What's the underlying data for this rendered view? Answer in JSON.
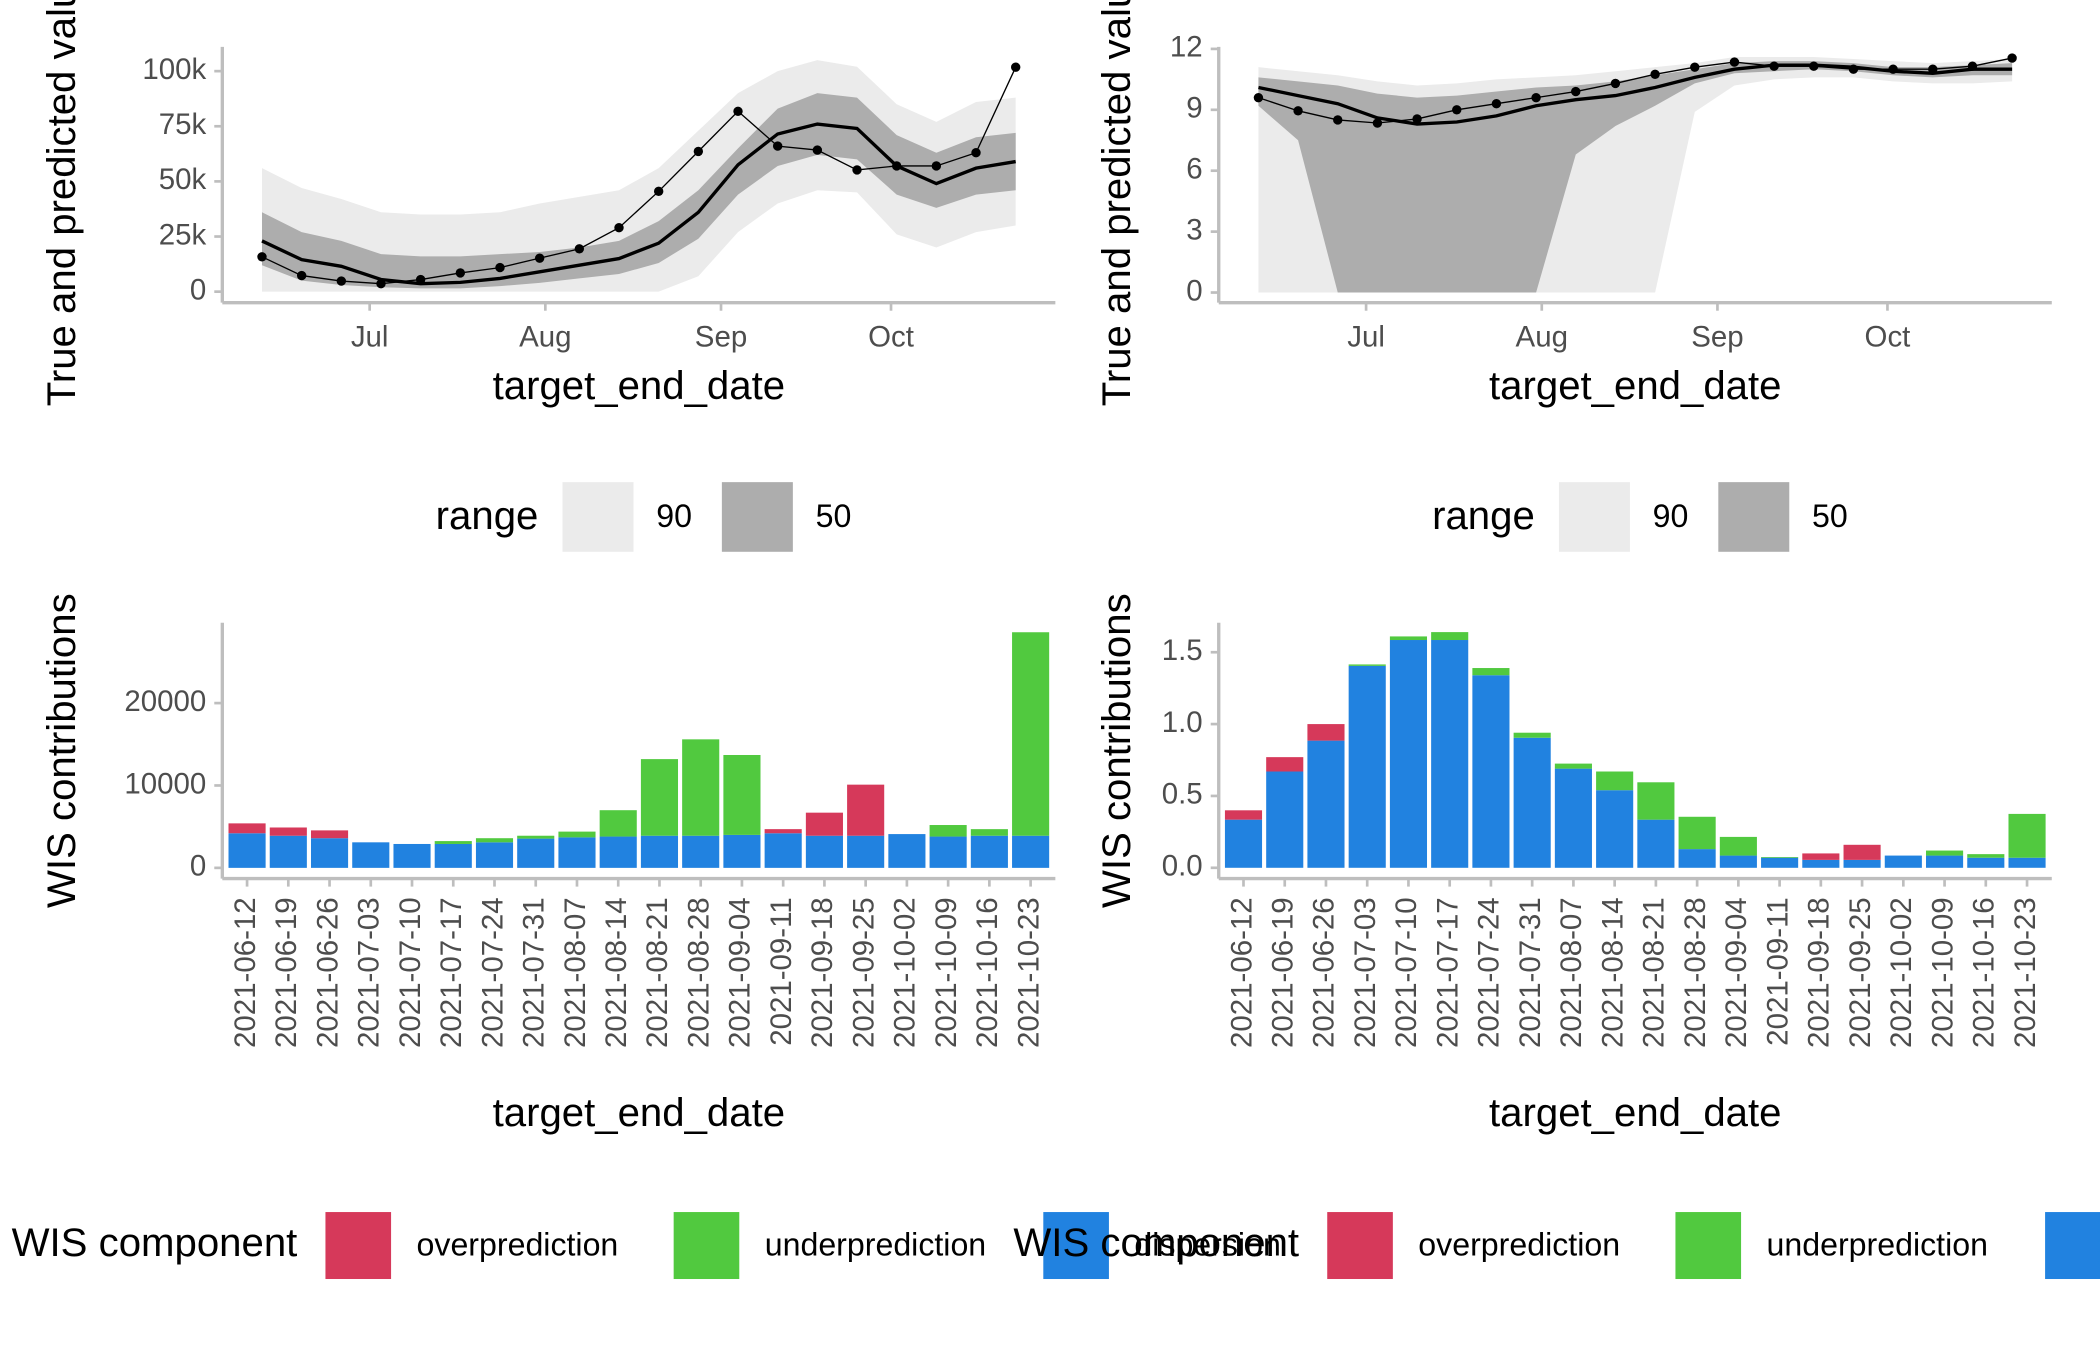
{
  "chart_data": [
    {
      "type": "line",
      "y_title": "True and predicted values",
      "x_title": "target_end_date",
      "legend_title": "range",
      "x": [
        "2021-06-12",
        "2021-06-19",
        "2021-06-26",
        "2021-07-03",
        "2021-07-10",
        "2021-07-17",
        "2021-07-24",
        "2021-07-31",
        "2021-08-07",
        "2021-08-14",
        "2021-08-21",
        "2021-08-28",
        "2021-09-04",
        "2021-09-11",
        "2021-09-18",
        "2021-09-25",
        "2021-10-02",
        "2021-10-09",
        "2021-10-16",
        "2021-10-23"
      ],
      "xlim": [
        "2021-06-05",
        "2021-10-30"
      ],
      "xticks": [
        {
          "value": "2021-07-01",
          "label": "Jul"
        },
        {
          "value": "2021-08-01",
          "label": "Aug"
        },
        {
          "value": "2021-09-01",
          "label": "Sep"
        },
        {
          "value": "2021-10-01",
          "label": "Oct"
        }
      ],
      "ylim": [
        -5000,
        111000
      ],
      "yticks": [
        0,
        {
          "value": 25000,
          "label": "25k"
        },
        {
          "value": 50000,
          "label": "50k"
        },
        {
          "value": 75000,
          "label": "75k"
        },
        {
          "value": 100000,
          "label": "100k"
        }
      ],
      "observed": [
        15800,
        7300,
        4800,
        3600,
        5500,
        8500,
        10900,
        15200,
        19400,
        29000,
        45500,
        63600,
        81800,
        66000,
        64200,
        55200,
        57000,
        57000,
        63000,
        101800
      ],
      "median": [
        23000,
        14500,
        11500,
        5500,
        3600,
        4200,
        6000,
        9000,
        12000,
        15000,
        22000,
        36000,
        57500,
        71500,
        76000,
        74000,
        57000,
        49000,
        56000,
        59000
      ],
      "bands": [
        {
          "name": "90",
          "color": "#ebebeb",
          "lower": [
            0,
            0,
            0,
            0,
            0,
            0,
            0,
            0,
            0,
            0,
            0,
            7000,
            27000,
            40000,
            46000,
            45000,
            26000,
            20000,
            27000,
            30000
          ],
          "upper": [
            56000,
            47000,
            42000,
            36000,
            35000,
            35000,
            36000,
            40000,
            43000,
            46000,
            56000,
            73000,
            90000,
            100000,
            105000,
            102000,
            85000,
            77000,
            86000,
            88000
          ]
        },
        {
          "name": "50",
          "color": "#adadad",
          "lower": [
            12000,
            5000,
            3000,
            2000,
            1500,
            1500,
            2500,
            4000,
            6000,
            8000,
            13000,
            24000,
            44000,
            57000,
            62000,
            60000,
            44000,
            38000,
            44000,
            46000
          ],
          "upper": [
            36000,
            27000,
            23000,
            17000,
            16000,
            16000,
            17000,
            18000,
            20000,
            23000,
            32000,
            46000,
            65000,
            83000,
            90000,
            88000,
            71000,
            63000,
            70000,
            72000
          ]
        }
      ]
    },
    {
      "type": "line",
      "y_title": "True and predicted values",
      "x_title": "target_end_date",
      "legend_title": "range",
      "x": [
        "2021-06-12",
        "2021-06-19",
        "2021-06-26",
        "2021-07-03",
        "2021-07-10",
        "2021-07-17",
        "2021-07-24",
        "2021-07-31",
        "2021-08-07",
        "2021-08-14",
        "2021-08-21",
        "2021-08-28",
        "2021-09-04",
        "2021-09-11",
        "2021-09-18",
        "2021-09-25",
        "2021-10-02",
        "2021-10-09",
        "2021-10-16",
        "2021-10-23"
      ],
      "xlim": [
        "2021-06-05",
        "2021-10-30"
      ],
      "xticks": [
        {
          "value": "2021-07-01",
          "label": "Jul"
        },
        {
          "value": "2021-08-01",
          "label": "Aug"
        },
        {
          "value": "2021-09-01",
          "label": "Sep"
        },
        {
          "value": "2021-10-01",
          "label": "Oct"
        }
      ],
      "ylim": [
        -0.5,
        12.1
      ],
      "yticks": [
        0,
        3,
        6,
        9,
        12
      ],
      "observed": [
        9.6,
        8.95,
        8.5,
        8.35,
        8.55,
        9.0,
        9.3,
        9.6,
        9.9,
        10.3,
        10.75,
        11.1,
        11.35,
        11.15,
        11.15,
        11.0,
        11.0,
        11.0,
        11.15,
        11.55
      ],
      "median": [
        10.1,
        9.7,
        9.3,
        8.6,
        8.3,
        8.4,
        8.7,
        9.2,
        9.5,
        9.7,
        10.1,
        10.6,
        11.0,
        11.2,
        11.2,
        11.1,
        10.9,
        10.8,
        11.0,
        11.0
      ],
      "bands": [
        {
          "name": "90",
          "color": "#ebebeb",
          "lower": [
            0,
            0,
            0,
            0,
            0,
            0,
            0,
            0,
            0,
            0,
            0,
            8.9,
            10.2,
            10.5,
            10.6,
            10.6,
            10.4,
            10.3,
            10.3,
            10.4
          ],
          "upper": [
            11.1,
            10.9,
            10.7,
            10.4,
            10.2,
            10.3,
            10.5,
            10.6,
            10.7,
            10.9,
            11.1,
            11.3,
            11.6,
            11.6,
            11.6,
            11.5,
            11.4,
            11.3,
            11.4,
            11.5
          ]
        },
        {
          "name": "50",
          "color": "#adadad",
          "lower": [
            9.2,
            7.5,
            0,
            0,
            0,
            0,
            0,
            0,
            6.8,
            8.2,
            9.2,
            10.3,
            10.8,
            10.9,
            11.0,
            10.9,
            10.7,
            10.6,
            10.7,
            10.7
          ],
          "upper": [
            10.6,
            10.4,
            10.2,
            9.8,
            9.6,
            9.7,
            9.9,
            10.1,
            10.2,
            10.4,
            10.7,
            11.0,
            11.3,
            11.4,
            11.4,
            11.3,
            11.1,
            11.1,
            11.2,
            11.3
          ]
        }
      ]
    },
    {
      "type": "bar",
      "y_title": "WIS contributions",
      "x_title": "target_end_date",
      "legend_title": "WIS component",
      "categories": [
        "2021-06-12",
        "2021-06-19",
        "2021-06-26",
        "2021-07-03",
        "2021-07-10",
        "2021-07-17",
        "2021-07-24",
        "2021-07-31",
        "2021-08-07",
        "2021-08-14",
        "2021-08-21",
        "2021-08-28",
        "2021-09-04",
        "2021-09-11",
        "2021-09-18",
        "2021-09-25",
        "2021-10-02",
        "2021-10-09",
        "2021-10-16",
        "2021-10-23"
      ],
      "ylim": [
        -1300,
        29750
      ],
      "yticks": [
        0,
        10000,
        20000
      ],
      "series": [
        {
          "name": "overprediction",
          "color": "#d6395a",
          "values": [
            1200,
            1000,
            950,
            0,
            0,
            0,
            0,
            0,
            0,
            0,
            0,
            0,
            0,
            500,
            2800,
            6200,
            0,
            0,
            0,
            0
          ]
        },
        {
          "name": "underprediction",
          "color": "#51c93f",
          "values": [
            0,
            0,
            0,
            0,
            0,
            350,
            500,
            350,
            700,
            3200,
            9300,
            11700,
            9700,
            0,
            0,
            0,
            0,
            1400,
            800,
            24700
          ]
        },
        {
          "name": "dispersion",
          "color": "#2182e0",
          "values": [
            4200,
            3900,
            3600,
            3100,
            2900,
            2900,
            3100,
            3550,
            3700,
            3800,
            3900,
            3900,
            4000,
            4200,
            3900,
            3900,
            4100,
            3800,
            3900,
            3900
          ]
        }
      ]
    },
    {
      "type": "bar",
      "y_title": "WIS contributions",
      "x_title": "target_end_date",
      "legend_title": "WIS component",
      "categories": [
        "2021-06-12",
        "2021-06-19",
        "2021-06-26",
        "2021-07-03",
        "2021-07-10",
        "2021-07-17",
        "2021-07-24",
        "2021-07-31",
        "2021-08-07",
        "2021-08-14",
        "2021-08-21",
        "2021-08-28",
        "2021-09-04",
        "2021-09-11",
        "2021-09-18",
        "2021-09-25",
        "2021-10-02",
        "2021-10-09",
        "2021-10-16",
        "2021-10-23"
      ],
      "ylim": [
        -0.075,
        1.705
      ],
      "yticks": [
        {
          "value": 0,
          "label": "0.0"
        },
        0.5,
        {
          "value": 1,
          "label": "1.0"
        },
        1.5
      ],
      "series": [
        {
          "name": "overprediction",
          "color": "#d6395a",
          "values": [
            0.065,
            0.1,
            0.115,
            0,
            0,
            0,
            0,
            0,
            0,
            0,
            0,
            0,
            0,
            0,
            0.045,
            0.105,
            0,
            0,
            0,
            0
          ]
        },
        {
          "name": "underprediction",
          "color": "#51c93f",
          "values": [
            0,
            0,
            0,
            0.01,
            0.025,
            0.055,
            0.05,
            0.035,
            0.035,
            0.13,
            0.26,
            0.225,
            0.13,
            0.005,
            0,
            0,
            0,
            0.035,
            0.025,
            0.305
          ]
        },
        {
          "name": "dispersion",
          "color": "#2182e0",
          "values": [
            0.335,
            0.67,
            0.885,
            1.405,
            1.585,
            1.585,
            1.34,
            0.905,
            0.69,
            0.54,
            0.335,
            0.13,
            0.085,
            0.07,
            0.055,
            0.055,
            0.085,
            0.085,
            0.07,
            0.07
          ]
        }
      ]
    }
  ]
}
